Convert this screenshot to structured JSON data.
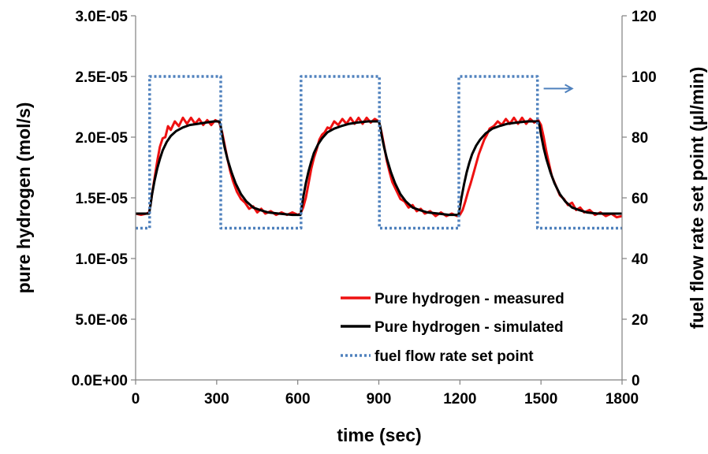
{
  "chart_data": {
    "type": "line",
    "xlabel": "time (sec)",
    "ylabel_left": "pure hydrogen (mol/s)",
    "ylabel_right": "fuel flow rate set point (µl/min)",
    "xlim": [
      0,
      1800
    ],
    "ylim_left": [
      0,
      3e-05
    ],
    "ylim_right": [
      0,
      120
    ],
    "x_ticks": [
      "0",
      "300",
      "600",
      "900",
      "1200",
      "1500",
      "1800"
    ],
    "y_left_ticks": [
      "0.0E+00",
      "5.0E-06",
      "1.0E-05",
      "1.5E-05",
      "2.0E-05",
      "2.5E-05",
      "3.0E-05"
    ],
    "y_right_ticks": [
      "0",
      "20",
      "40",
      "60",
      "80",
      "100",
      "120"
    ],
    "grid": false,
    "legend_position": "bottom-right",
    "colors": {
      "measured": "#ee1111",
      "simulated": "#000000",
      "setpoint": "#4f81bd"
    },
    "series": [
      {
        "name": "Pure hydrogen - measured",
        "axis": "left",
        "style": "solid",
        "points": [
          [
            0,
            1.37e-05
          ],
          [
            20,
            1.36e-05
          ],
          [
            40,
            1.37e-05
          ],
          [
            50,
            1.38e-05
          ],
          [
            55,
            1.44e-05
          ],
          [
            60,
            1.52e-05
          ],
          [
            70,
            1.66e-05
          ],
          [
            80,
            1.8e-05
          ],
          [
            90,
            1.92e-05
          ],
          [
            100,
            1.99e-05
          ],
          [
            110,
            2e-05
          ],
          [
            120,
            2.09e-05
          ],
          [
            130,
            2.06e-05
          ],
          [
            145,
            2.13e-05
          ],
          [
            160,
            2.09e-05
          ],
          [
            175,
            2.16e-05
          ],
          [
            190,
            2.11e-05
          ],
          [
            205,
            2.16e-05
          ],
          [
            220,
            2.11e-05
          ],
          [
            235,
            2.15e-05
          ],
          [
            250,
            2.1e-05
          ],
          [
            265,
            2.14e-05
          ],
          [
            280,
            2.1e-05
          ],
          [
            295,
            2.14e-05
          ],
          [
            310,
            2.12e-05
          ],
          [
            320,
            2.04e-05
          ],
          [
            330,
            1.93e-05
          ],
          [
            340,
            1.82e-05
          ],
          [
            350,
            1.72e-05
          ],
          [
            360,
            1.64e-05
          ],
          [
            375,
            1.55e-05
          ],
          [
            390,
            1.49e-05
          ],
          [
            405,
            1.46e-05
          ],
          [
            420,
            1.41e-05
          ],
          [
            435,
            1.43e-05
          ],
          [
            450,
            1.38e-05
          ],
          [
            465,
            1.41e-05
          ],
          [
            480,
            1.37e-05
          ],
          [
            500,
            1.39e-05
          ],
          [
            520,
            1.36e-05
          ],
          [
            540,
            1.38e-05
          ],
          [
            560,
            1.36e-05
          ],
          [
            580,
            1.38e-05
          ],
          [
            600,
            1.36e-05
          ],
          [
            610,
            1.37e-05
          ],
          [
            620,
            1.42e-05
          ],
          [
            630,
            1.5e-05
          ],
          [
            640,
            1.62e-05
          ],
          [
            650,
            1.74e-05
          ],
          [
            660,
            1.83e-05
          ],
          [
            670,
            1.9e-05
          ],
          [
            680,
            1.98e-05
          ],
          [
            690,
            2.02e-05
          ],
          [
            700,
            2.04e-05
          ],
          [
            710,
            2.08e-05
          ],
          [
            720,
            2.07e-05
          ],
          [
            735,
            2.13e-05
          ],
          [
            750,
            2.1e-05
          ],
          [
            765,
            2.15e-05
          ],
          [
            780,
            2.11e-05
          ],
          [
            795,
            2.16e-05
          ],
          [
            810,
            2.11e-05
          ],
          [
            825,
            2.16e-05
          ],
          [
            840,
            2.11e-05
          ],
          [
            855,
            2.16e-05
          ],
          [
            870,
            2.12e-05
          ],
          [
            885,
            2.15e-05
          ],
          [
            900,
            2.13e-05
          ],
          [
            910,
            2.04e-05
          ],
          [
            920,
            1.92e-05
          ],
          [
            930,
            1.8e-05
          ],
          [
            940,
            1.71e-05
          ],
          [
            950,
            1.63e-05
          ],
          [
            965,
            1.56e-05
          ],
          [
            980,
            1.49e-05
          ],
          [
            995,
            1.47e-05
          ],
          [
            1010,
            1.42e-05
          ],
          [
            1025,
            1.44e-05
          ],
          [
            1040,
            1.39e-05
          ],
          [
            1055,
            1.41e-05
          ],
          [
            1070,
            1.37e-05
          ],
          [
            1090,
            1.39e-05
          ],
          [
            1110,
            1.35e-05
          ],
          [
            1130,
            1.38e-05
          ],
          [
            1150,
            1.35e-05
          ],
          [
            1170,
            1.37e-05
          ],
          [
            1190,
            1.35e-05
          ],
          [
            1200,
            1.36e-05
          ],
          [
            1210,
            1.4e-05
          ],
          [
            1220,
            1.47e-05
          ],
          [
            1230,
            1.55e-05
          ],
          [
            1240,
            1.62e-05
          ],
          [
            1250,
            1.7e-05
          ],
          [
            1260,
            1.78e-05
          ],
          [
            1270,
            1.86e-05
          ],
          [
            1280,
            1.92e-05
          ],
          [
            1290,
            1.98e-05
          ],
          [
            1300,
            2.02e-05
          ],
          [
            1310,
            2.07e-05
          ],
          [
            1325,
            2.09e-05
          ],
          [
            1340,
            2.13e-05
          ],
          [
            1355,
            2.1e-05
          ],
          [
            1370,
            2.15e-05
          ],
          [
            1385,
            2.11e-05
          ],
          [
            1400,
            2.16e-05
          ],
          [
            1415,
            2.11e-05
          ],
          [
            1430,
            2.16e-05
          ],
          [
            1445,
            2.11e-05
          ],
          [
            1460,
            2.15e-05
          ],
          [
            1475,
            2.12e-05
          ],
          [
            1490,
            2.14e-05
          ],
          [
            1500,
            2.1e-05
          ],
          [
            1510,
            2e-05
          ],
          [
            1520,
            1.88e-05
          ],
          [
            1530,
            1.78e-05
          ],
          [
            1540,
            1.68e-05
          ],
          [
            1555,
            1.6e-05
          ],
          [
            1570,
            1.52e-05
          ],
          [
            1585,
            1.49e-05
          ],
          [
            1600,
            1.44e-05
          ],
          [
            1615,
            1.46e-05
          ],
          [
            1630,
            1.4e-05
          ],
          [
            1645,
            1.42e-05
          ],
          [
            1660,
            1.38e-05
          ],
          [
            1680,
            1.4e-05
          ],
          [
            1700,
            1.36e-05
          ],
          [
            1720,
            1.38e-05
          ],
          [
            1740,
            1.35e-05
          ],
          [
            1760,
            1.37e-05
          ],
          [
            1780,
            1.34e-05
          ],
          [
            1800,
            1.35e-05
          ]
        ]
      },
      {
        "name": "Pure hydrogen - simulated",
        "axis": "left",
        "style": "solid",
        "points": [
          [
            0,
            1.37e-05
          ],
          [
            25,
            1.37e-05
          ],
          [
            50,
            1.37e-05
          ],
          [
            55,
            1.44e-05
          ],
          [
            60,
            1.52e-05
          ],
          [
            70,
            1.64e-05
          ],
          [
            80,
            1.74e-05
          ],
          [
            90,
            1.82e-05
          ],
          [
            100,
            1.89e-05
          ],
          [
            115,
            1.96e-05
          ],
          [
            130,
            2.01e-05
          ],
          [
            150,
            2.05e-05
          ],
          [
            175,
            2.08e-05
          ],
          [
            200,
            2.1e-05
          ],
          [
            230,
            2.11e-05
          ],
          [
            260,
            2.12e-05
          ],
          [
            290,
            2.13e-05
          ],
          [
            310,
            2.13e-05
          ],
          [
            315,
            2.09e-05
          ],
          [
            320,
            2.02e-05
          ],
          [
            330,
            1.91e-05
          ],
          [
            340,
            1.82e-05
          ],
          [
            355,
            1.71e-05
          ],
          [
            370,
            1.62e-05
          ],
          [
            390,
            1.53e-05
          ],
          [
            410,
            1.47e-05
          ],
          [
            435,
            1.42e-05
          ],
          [
            460,
            1.4e-05
          ],
          [
            490,
            1.38e-05
          ],
          [
            530,
            1.37e-05
          ],
          [
            580,
            1.36e-05
          ],
          [
            610,
            1.36e-05
          ],
          [
            615,
            1.43e-05
          ],
          [
            620,
            1.5e-05
          ],
          [
            630,
            1.62e-05
          ],
          [
            640,
            1.72e-05
          ],
          [
            650,
            1.8e-05
          ],
          [
            660,
            1.87e-05
          ],
          [
            675,
            1.94e-05
          ],
          [
            690,
            1.99e-05
          ],
          [
            710,
            2.04e-05
          ],
          [
            735,
            2.07e-05
          ],
          [
            760,
            2.09e-05
          ],
          [
            790,
            2.11e-05
          ],
          [
            820,
            2.12e-05
          ],
          [
            860,
            2.13e-05
          ],
          [
            900,
            2.13e-05
          ],
          [
            905,
            2.09e-05
          ],
          [
            910,
            2.02e-05
          ],
          [
            920,
            1.91e-05
          ],
          [
            930,
            1.82e-05
          ],
          [
            945,
            1.71e-05
          ],
          [
            960,
            1.62e-05
          ],
          [
            980,
            1.53e-05
          ],
          [
            1000,
            1.47e-05
          ],
          [
            1025,
            1.42e-05
          ],
          [
            1050,
            1.4e-05
          ],
          [
            1080,
            1.38e-05
          ],
          [
            1120,
            1.37e-05
          ],
          [
            1160,
            1.36e-05
          ],
          [
            1195,
            1.36e-05
          ],
          [
            1200,
            1.42e-05
          ],
          [
            1205,
            1.49e-05
          ],
          [
            1215,
            1.61e-05
          ],
          [
            1225,
            1.71e-05
          ],
          [
            1235,
            1.79e-05
          ],
          [
            1245,
            1.86e-05
          ],
          [
            1260,
            1.93e-05
          ],
          [
            1275,
            1.98e-05
          ],
          [
            1295,
            2.03e-05
          ],
          [
            1320,
            2.07e-05
          ],
          [
            1345,
            2.09e-05
          ],
          [
            1375,
            2.11e-05
          ],
          [
            1410,
            2.12e-05
          ],
          [
            1450,
            2.13e-05
          ],
          [
            1490,
            2.13e-05
          ],
          [
            1495,
            2.09e-05
          ],
          [
            1500,
            2.02e-05
          ],
          [
            1510,
            1.91e-05
          ],
          [
            1520,
            1.82e-05
          ],
          [
            1535,
            1.71e-05
          ],
          [
            1550,
            1.62e-05
          ],
          [
            1570,
            1.53e-05
          ],
          [
            1590,
            1.47e-05
          ],
          [
            1615,
            1.42e-05
          ],
          [
            1640,
            1.4e-05
          ],
          [
            1670,
            1.38e-05
          ],
          [
            1710,
            1.37e-05
          ],
          [
            1760,
            1.37e-05
          ],
          [
            1800,
            1.37e-05
          ]
        ]
      },
      {
        "name": "fuel flow rate set point",
        "axis": "right",
        "style": "dotted",
        "points": [
          [
            0,
            50
          ],
          [
            52,
            50
          ],
          [
            52,
            100
          ],
          [
            315,
            100
          ],
          [
            315,
            50
          ],
          [
            612,
            50
          ],
          [
            612,
            100
          ],
          [
            902,
            100
          ],
          [
            902,
            50
          ],
          [
            1196,
            50
          ],
          [
            1196,
            100
          ],
          [
            1487,
            100
          ],
          [
            1487,
            50
          ],
          [
            1800,
            50
          ]
        ]
      }
    ],
    "annotations": [
      {
        "type": "arrow",
        "direction": "right",
        "target_axis": "right",
        "x_data": 1510,
        "y_data": 96
      }
    ]
  }
}
